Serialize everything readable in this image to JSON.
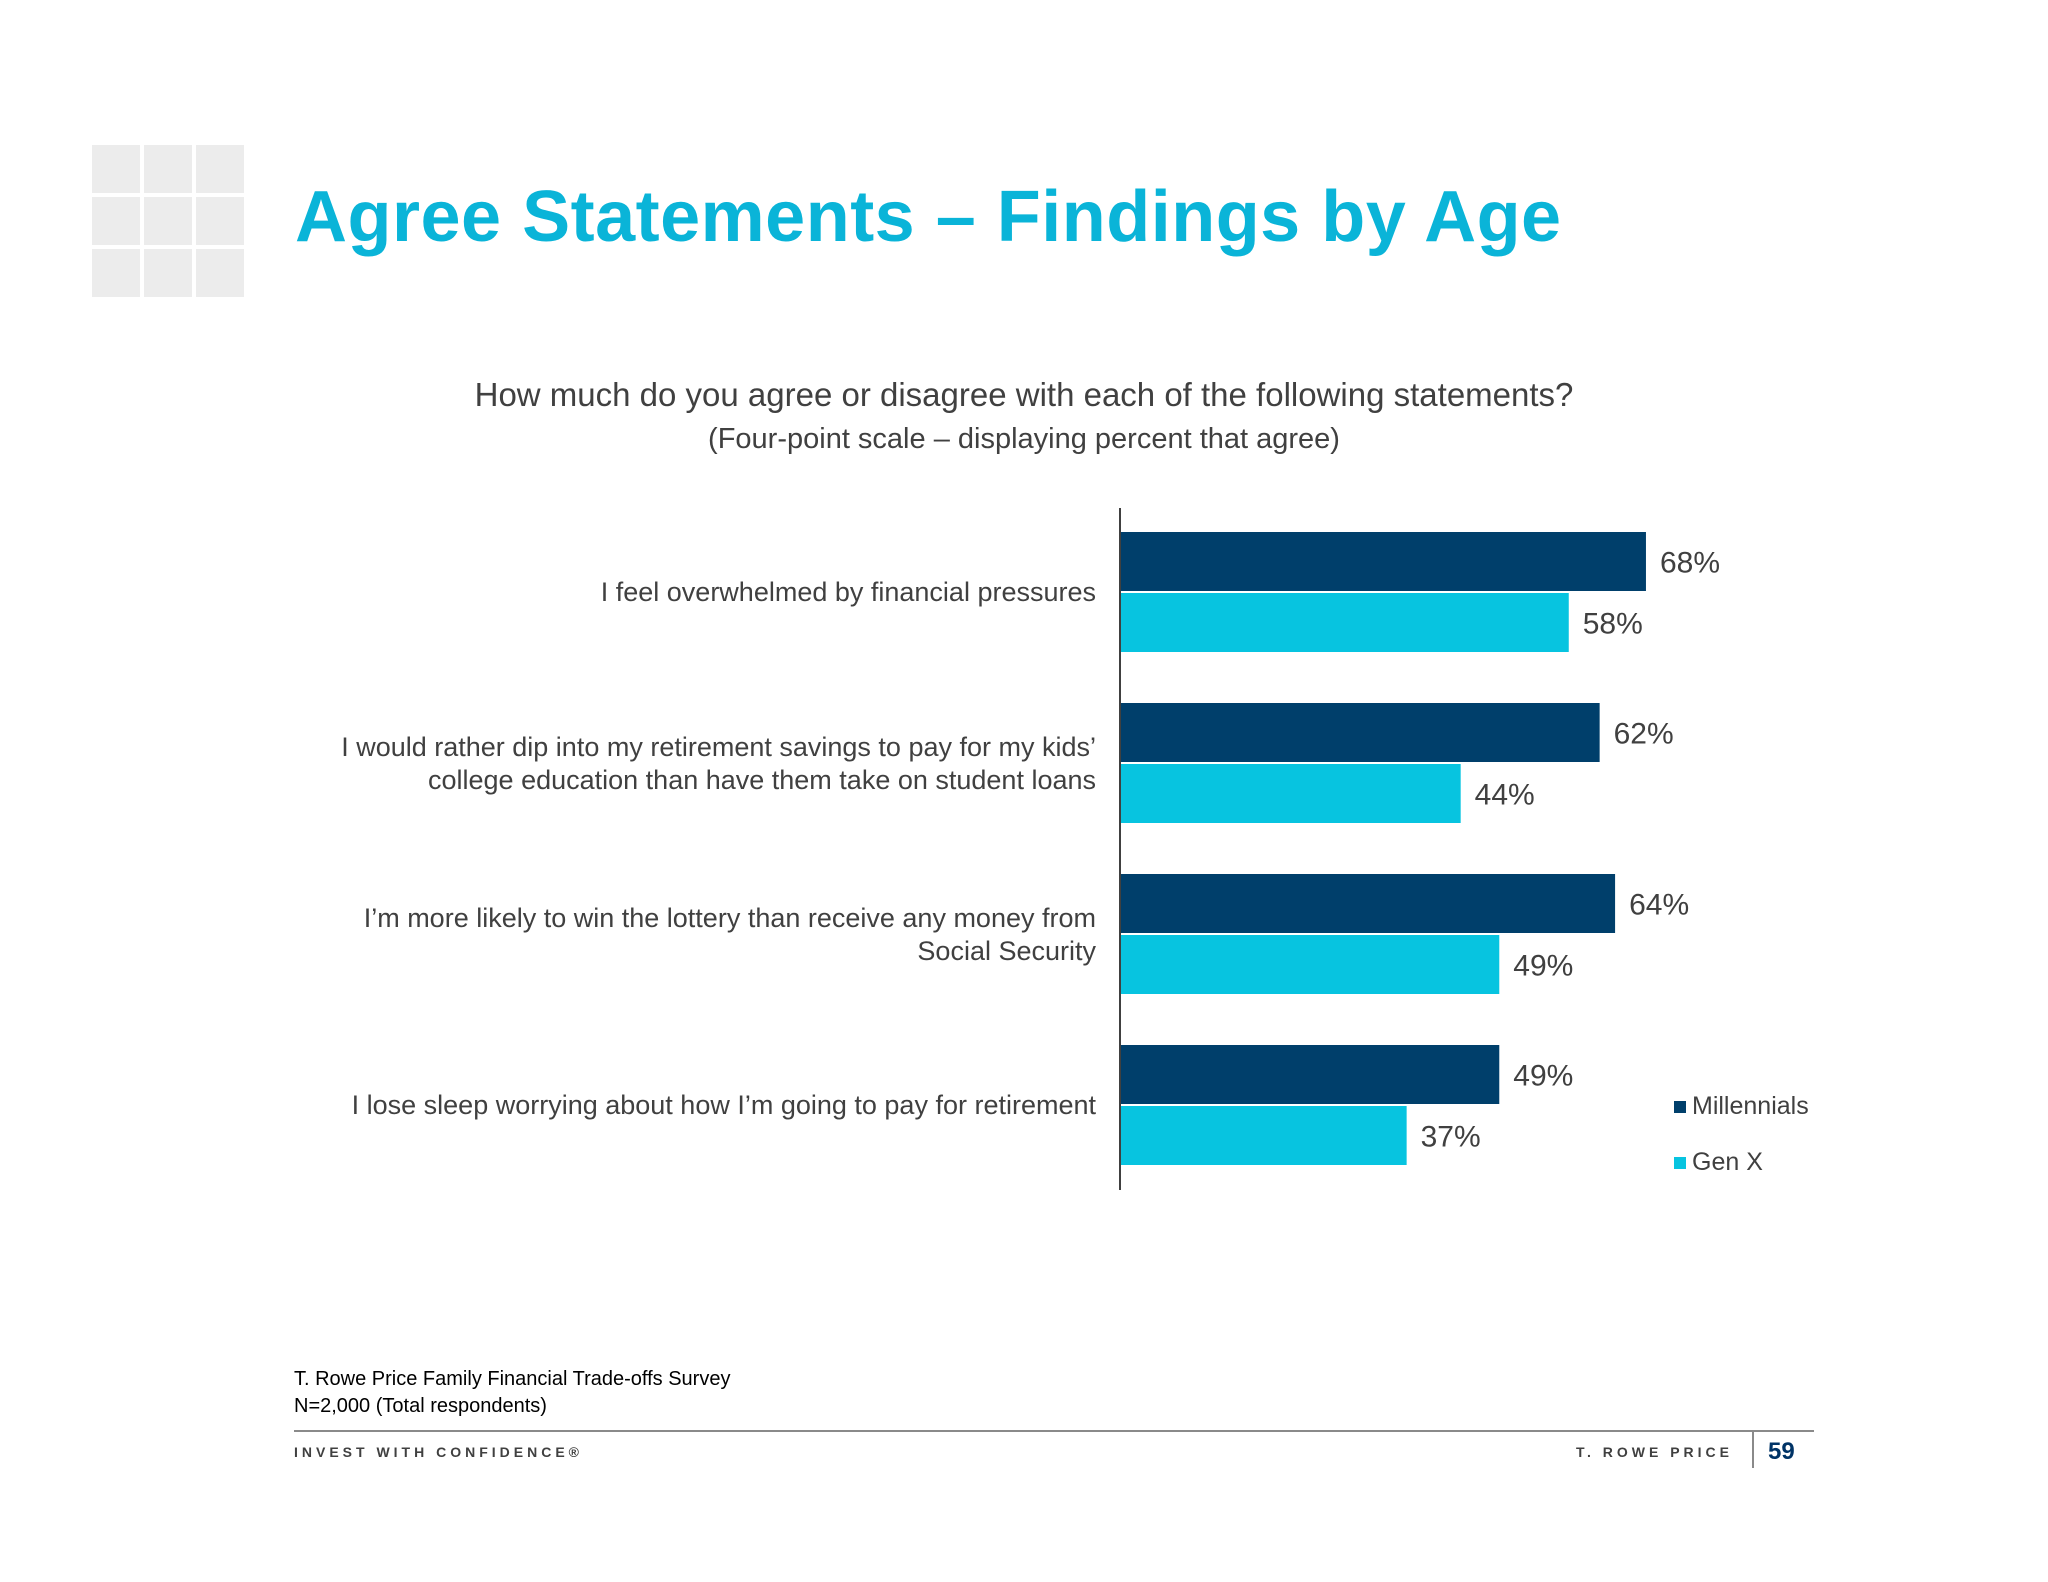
{
  "slide": {
    "title": "Agree Statements – Findings by Age",
    "question": "How much do you agree or disagree with each of the following statements?",
    "subquestion": "(Four-point scale – displaying percent that agree)",
    "source_line1": "T. Rowe Price Family Financial Trade-offs Survey",
    "source_line2": "N=2,000 (Total respondents)",
    "footer_left": "INVEST WITH CONFIDENCE®",
    "footer_right": "T. ROWE PRICE",
    "page_number": "59"
  },
  "colors": {
    "title": "#0ab4d8",
    "millennials": "#003f6b",
    "genx": "#07c4e0",
    "text": "#404040"
  },
  "chart_data": {
    "type": "bar",
    "orientation": "horizontal",
    "categories": [
      "I feel overwhelmed by financial pressures",
      "I would rather dip into my retirement savings to pay for my kids’ college education than have them take on student loans",
      "I’m more likely to win the lottery than receive any money from Social Security",
      "I lose sleep worrying about how I’m going to pay for retirement"
    ],
    "category_lines": [
      [
        "I feel overwhelmed by financial pressures"
      ],
      [
        "I would rather dip into my retirement savings to pay for my kids’",
        "college education than have them take on student loans"
      ],
      [
        "I’m more likely to win the lottery than receive any money from",
        "Social Security"
      ],
      [
        "I lose sleep worrying about how I’m going to pay for retirement"
      ]
    ],
    "series": [
      {
        "name": "Millennials",
        "values": [
          68,
          62,
          64,
          49
        ],
        "labels": [
          "68%",
          "62%",
          "64%",
          "49%"
        ]
      },
      {
        "name": "Gen X",
        "values": [
          58,
          44,
          49,
          37
        ],
        "labels": [
          "58%",
          "44%",
          "49%",
          "37%"
        ]
      }
    ],
    "unit": "%",
    "xlim": [
      0,
      100
    ],
    "grid": false,
    "legend_position": "bottom-right"
  }
}
